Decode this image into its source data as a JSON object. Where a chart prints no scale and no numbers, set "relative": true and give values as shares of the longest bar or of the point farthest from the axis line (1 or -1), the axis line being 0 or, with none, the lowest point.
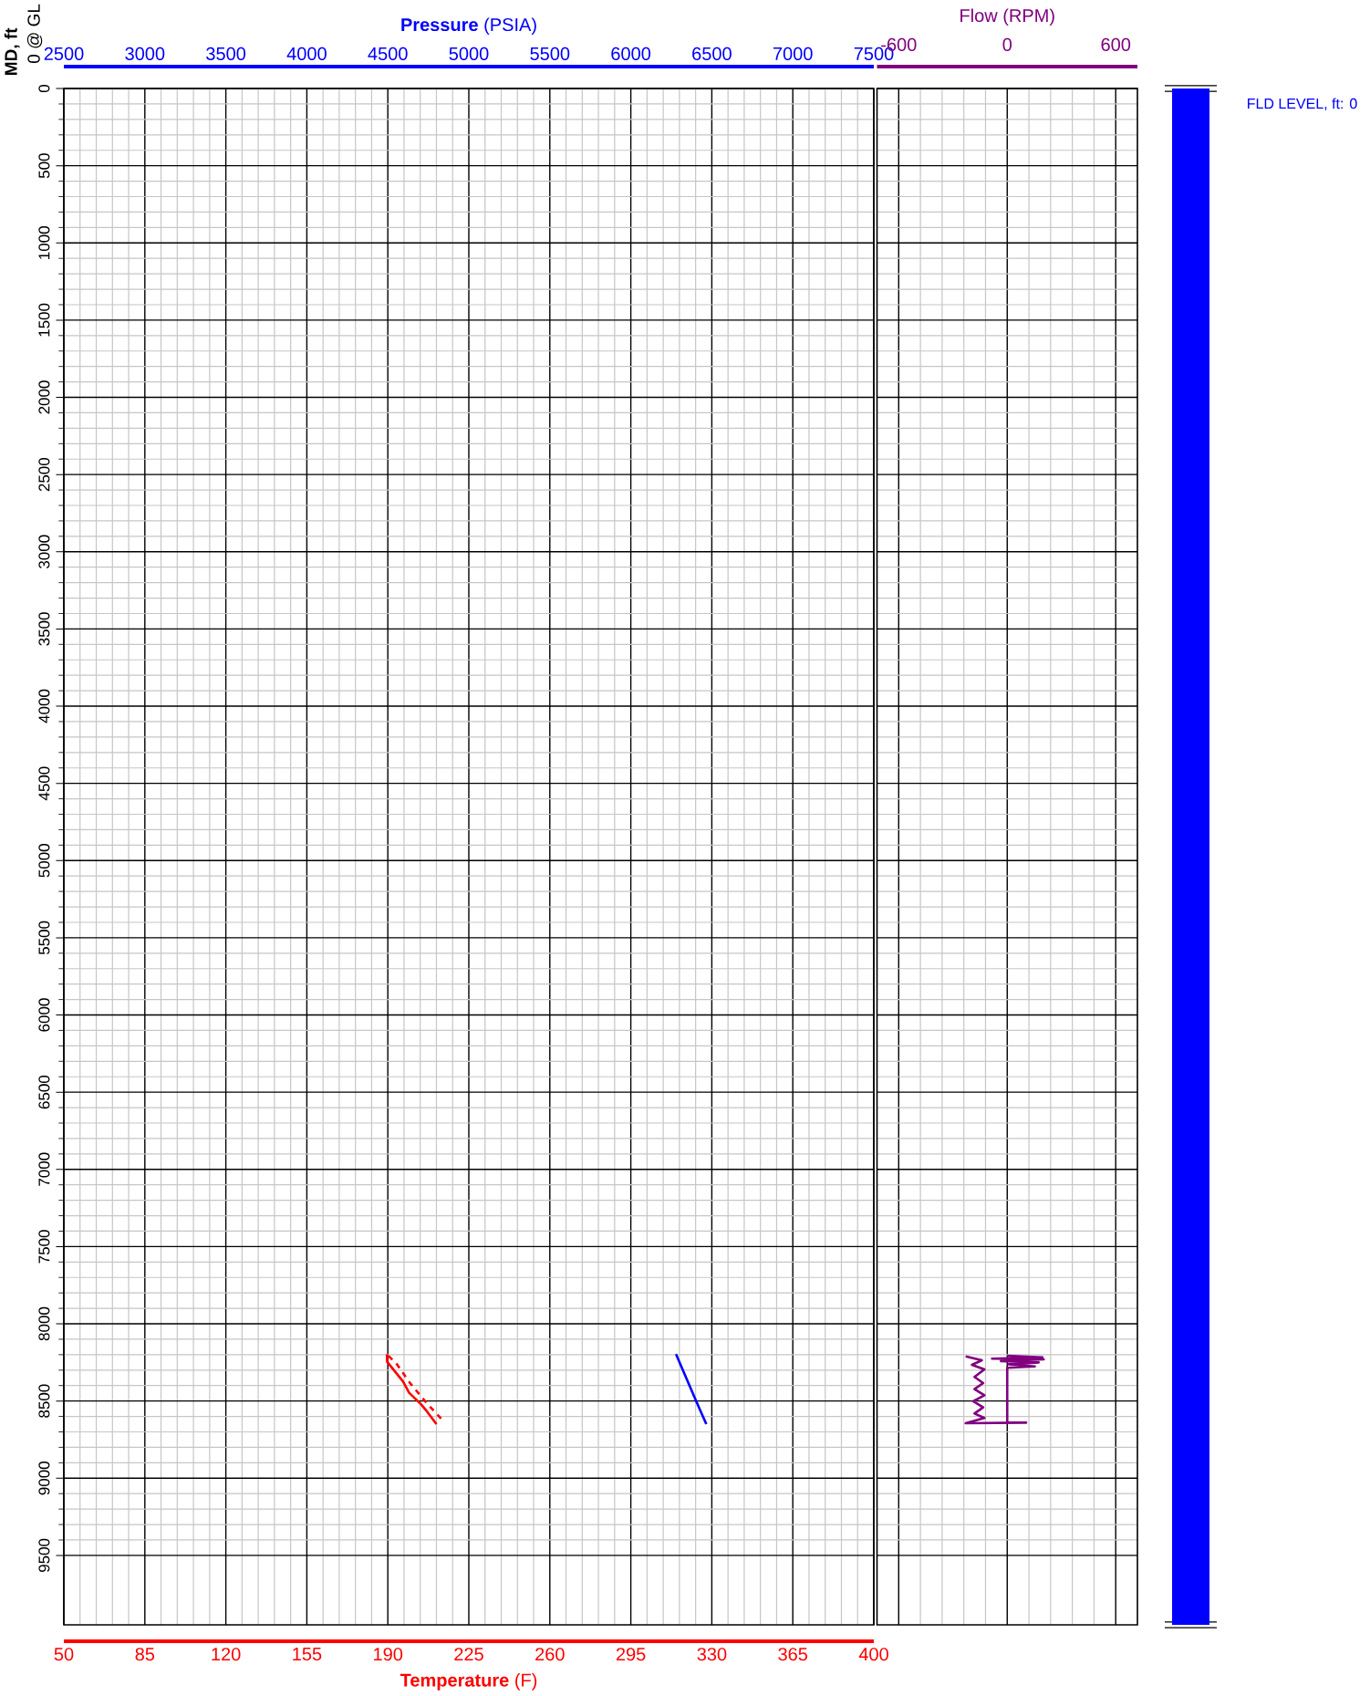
{
  "chart_data": [
    {
      "type": "line",
      "xlabel": "**Temperature** (F)",
      "x2label": "**Pressure** (PSIA)",
      "ylabel": "MD, ft",
      "annotations": [
        "0 @ GL"
      ],
      "xlim": [
        50,
        400
      ],
      "xticks": [
        50,
        85,
        120,
        155,
        190,
        225,
        260,
        295,
        330,
        365,
        400
      ],
      "x2lim": [
        2500,
        7500
      ],
      "x2ticks": [
        2500,
        3000,
        3500,
        4000,
        4500,
        5000,
        5500,
        6000,
        6500,
        7000,
        7500
      ],
      "ylim": [
        9950,
        0
      ],
      "yticks": [
        0,
        500,
        1000,
        1500,
        2000,
        2500,
        3000,
        3500,
        4000,
        4500,
        5000,
        5500,
        6000,
        6500,
        7000,
        7500,
        8000,
        8500,
        9000,
        9500
      ],
      "grid": true,
      "series": [
        {
          "color": "#ff0000",
          "x": [
            189.6,
            189.7,
            196.6,
            199.2,
            204.4,
            207.1,
            211.0
          ],
          "values": [
            8197,
            8246,
            8374,
            8447,
            8522,
            8571,
            8650
          ]
        },
        {
          "color": "#ff0000",
          "line_style": "dashed",
          "x": [
            190.3,
            193.9,
            199.8,
            206.7,
            214.0
          ],
          "values": [
            8207,
            8262,
            8388,
            8512,
            8630
          ]
        },
        {
          "color": "#0000ff",
          "axis": "x2",
          "x": [
            6279,
            6404,
            6466
          ],
          "values": [
            8197,
            8502,
            8650
          ]
        }
      ]
    },
    {
      "type": "line",
      "xlabel": "Flow (RPM)",
      "xlim": [
        -720,
        720
      ],
      "xticks": [
        -600,
        0,
        600
      ],
      "ylim": [
        9950,
        0
      ],
      "yticks": [
        0,
        500,
        1000,
        1500,
        2000,
        2500,
        3000,
        3500,
        4000,
        4500,
        5000,
        5500,
        6000,
        6500,
        7000,
        7500,
        8000,
        8500,
        9000,
        9500
      ],
      "tick_labels": "x",
      "grid": true,
      "series": [
        {
          "color": "#800080",
          "x": [
            0,
            195,
            -84,
            202,
            -35,
            174,
            7,
            153,
            0,
            0,
            105,
            -230,
            -126,
            -181,
            -133,
            -188,
            -126,
            -181,
            -133,
            -181,
            -126,
            -195,
            -140,
            -230
          ],
          "values": [
            8207,
            8217,
            8226,
            8230,
            8242,
            8250,
            8262,
            8276,
            8285,
            8640,
            8640,
            8644,
            8610,
            8581,
            8541,
            8502,
            8463,
            8423,
            8384,
            8344,
            8295,
            8266,
            8236,
            8211
          ]
        }
      ]
    },
    {
      "type": "bar",
      "categories": [
        null
      ],
      "values": [
        1
      ],
      "relative": true,
      "color": "#0000ff",
      "annotations": [
        "FLD LEVEL, ft: 0"
      ]
    }
  ]
}
